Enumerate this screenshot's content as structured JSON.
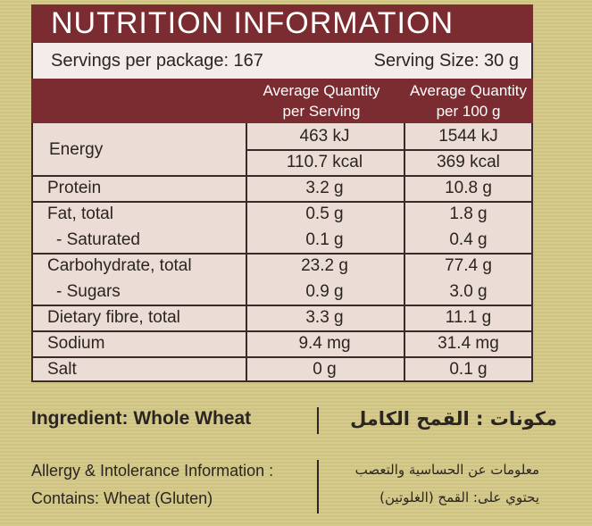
{
  "header": {
    "title": "NUTRITION INFORMATION",
    "servings_per_package": "Servings per package: 167",
    "serving_size": "Serving Size: 30 g"
  },
  "table": {
    "columns": [
      "Average Quantity per Serving",
      "Average Quantity per 100 g"
    ],
    "groups": [
      {
        "label": "Energy",
        "lines": [
          {
            "values": [
              "463 kJ",
              "1544 kJ"
            ]
          },
          {
            "values": [
              "110.7 kcal",
              "369 kcal"
            ]
          }
        ]
      },
      {
        "lines": [
          {
            "label": "Protein",
            "values": [
              "3.2 g",
              "10.8 g"
            ]
          }
        ]
      },
      {
        "lines": [
          {
            "label": "Fat, total",
            "values": [
              "0.5 g",
              "1.8 g"
            ]
          },
          {
            "label": "- Saturated",
            "values": [
              "0.1 g",
              "0.4 g"
            ]
          }
        ]
      },
      {
        "lines": [
          {
            "label": "Carbohydrate, total",
            "values": [
              "23.2 g",
              "77.4 g"
            ]
          },
          {
            "label": "- Sugars",
            "values": [
              "0.9 g",
              "3.0 g"
            ]
          }
        ]
      },
      {
        "lines": [
          {
            "label": "Dietary fibre, total",
            "values": [
              "3.3 g",
              "11.1 g"
            ]
          }
        ]
      },
      {
        "lines": [
          {
            "label": "Sodium",
            "values": [
              "9.4 mg",
              "31.4 mg"
            ]
          }
        ]
      },
      {
        "lines": [
          {
            "label": "Salt",
            "values": [
              "0 g",
              "0.1 g"
            ]
          }
        ]
      }
    ]
  },
  "ingredients": {
    "english": "Ingredient: Whole Wheat",
    "arabic": "مكونات : القمح الكامل"
  },
  "allergy": {
    "english": [
      "Allergy & Intolerance Information :",
      "Contains: Wheat (Gluten)"
    ],
    "arabic": [
      "معلومات عن الحساسية والتعصب",
      "يحتوي على: القمح (الغلوتين)"
    ]
  }
}
